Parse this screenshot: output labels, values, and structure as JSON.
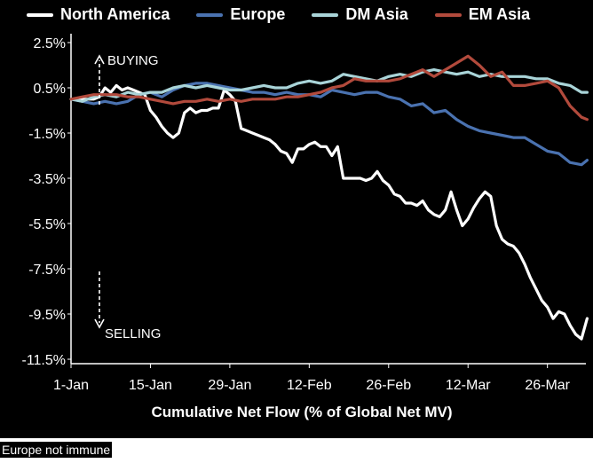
{
  "chart_data": {
    "type": "line",
    "title": "",
    "xlabel": "Cumulative Net Flow (% of Global Net MV)",
    "ylabel": "",
    "x_ticks": [
      "1-Jan",
      "15-Jan",
      "29-Jan",
      "12-Feb",
      "26-Feb",
      "12-Mar",
      "26-Mar"
    ],
    "y_ticks": [
      "2.5%",
      "0.5%",
      "-1.5%",
      "-3.5%",
      "-5.5%",
      "-7.5%",
      "-9.5%",
      "-11.5%"
    ],
    "ylim": [
      -11.5,
      2.5
    ],
    "xlim_days": [
      0,
      90
    ],
    "grid": false,
    "legend_position": "top",
    "annotations": [
      "BUYING",
      "SELLING"
    ],
    "series": [
      {
        "name": "North America",
        "color": "#ffffff",
        "points": [
          [
            0,
            0
          ],
          [
            2,
            0
          ],
          [
            4,
            0
          ],
          [
            5,
            0.1
          ],
          [
            6,
            0.5
          ],
          [
            7,
            0.3
          ],
          [
            8,
            0.6
          ],
          [
            9,
            0.4
          ],
          [
            10,
            0.5
          ],
          [
            11,
            0.4
          ],
          [
            12,
            0.3
          ],
          [
            13,
            0.2
          ],
          [
            14,
            -0.5
          ],
          [
            15,
            -0.8
          ],
          [
            16,
            -1.2
          ],
          [
            17,
            -1.5
          ],
          [
            18,
            -1.7
          ],
          [
            19,
            -1.5
          ],
          [
            20,
            -0.6
          ],
          [
            21,
            -0.4
          ],
          [
            22,
            -0.6
          ],
          [
            23,
            -0.5
          ],
          [
            24,
            -0.5
          ],
          [
            25,
            -0.4
          ],
          [
            26,
            -0.4
          ],
          [
            27,
            0.4
          ],
          [
            28,
            0.2
          ],
          [
            29,
            -0.1
          ],
          [
            30,
            -1.3
          ],
          [
            31,
            -1.4
          ],
          [
            32,
            -1.5
          ],
          [
            33,
            -1.6
          ],
          [
            34,
            -1.7
          ],
          [
            35,
            -1.8
          ],
          [
            36,
            -2.0
          ],
          [
            37,
            -2.3
          ],
          [
            38,
            -2.4
          ],
          [
            39,
            -2.8
          ],
          [
            40,
            -2.2
          ],
          [
            41,
            -2.2
          ],
          [
            42,
            -2.0
          ],
          [
            43,
            -1.9
          ],
          [
            44,
            -2.1
          ],
          [
            45,
            -2.1
          ],
          [
            46,
            -2.5
          ],
          [
            47,
            -2.1
          ],
          [
            48,
            -3.5
          ],
          [
            49,
            -3.5
          ],
          [
            50,
            -3.5
          ],
          [
            51,
            -3.5
          ],
          [
            52,
            -3.6
          ],
          [
            53,
            -3.5
          ],
          [
            54,
            -3.2
          ],
          [
            55,
            -3.6
          ],
          [
            56,
            -3.8
          ],
          [
            57,
            -4.2
          ],
          [
            58,
            -4.3
          ],
          [
            59,
            -4.6
          ],
          [
            60,
            -4.6
          ],
          [
            61,
            -4.7
          ],
          [
            62,
            -4.5
          ],
          [
            63,
            -4.9
          ],
          [
            64,
            -5.1
          ],
          [
            65,
            -5.2
          ],
          [
            66,
            -4.9
          ],
          [
            67,
            -4.1
          ],
          [
            68,
            -4.9
          ],
          [
            69,
            -5.6
          ],
          [
            70,
            -5.3
          ],
          [
            71,
            -4.8
          ],
          [
            72,
            -4.4
          ],
          [
            73,
            -4.1
          ],
          [
            74,
            -4.3
          ],
          [
            75,
            -5.6
          ],
          [
            76,
            -6.2
          ],
          [
            77,
            -6.4
          ],
          [
            78,
            -6.5
          ],
          [
            79,
            -6.8
          ],
          [
            80,
            -7.3
          ],
          [
            81,
            -7.9
          ],
          [
            82,
            -8.4
          ],
          [
            83,
            -8.9
          ],
          [
            84,
            -9.2
          ],
          [
            85,
            -9.7
          ],
          [
            86,
            -9.4
          ],
          [
            87,
            -9.5
          ],
          [
            88,
            -10.0
          ],
          [
            89,
            -10.4
          ],
          [
            90,
            -10.6
          ],
          [
            91,
            -9.7
          ]
        ]
      },
      {
        "name": "Europe",
        "color": "#4a72b0",
        "points": [
          [
            0,
            0
          ],
          [
            2,
            -0.1
          ],
          [
            4,
            -0.2
          ],
          [
            6,
            -0.1
          ],
          [
            8,
            -0.2
          ],
          [
            10,
            -0.1
          ],
          [
            12,
            0.2
          ],
          [
            14,
            0.3
          ],
          [
            16,
            0.1
          ],
          [
            18,
            0.4
          ],
          [
            20,
            0.6
          ],
          [
            22,
            0.7
          ],
          [
            24,
            0.7
          ],
          [
            26,
            0.6
          ],
          [
            28,
            0.5
          ],
          [
            30,
            0.4
          ],
          [
            32,
            0.3
          ],
          [
            34,
            0.3
          ],
          [
            36,
            0.2
          ],
          [
            38,
            0.3
          ],
          [
            40,
            0.2
          ],
          [
            42,
            0.2
          ],
          [
            44,
            0.1
          ],
          [
            46,
            0.4
          ],
          [
            48,
            0.3
          ],
          [
            50,
            0.2
          ],
          [
            52,
            0.3
          ],
          [
            54,
            0.3
          ],
          [
            56,
            0.1
          ],
          [
            58,
            0.0
          ],
          [
            60,
            -0.3
          ],
          [
            62,
            -0.2
          ],
          [
            64,
            -0.6
          ],
          [
            66,
            -0.5
          ],
          [
            68,
            -0.9
          ],
          [
            70,
            -1.2
          ],
          [
            72,
            -1.4
          ],
          [
            74,
            -1.5
          ],
          [
            76,
            -1.6
          ],
          [
            78,
            -1.7
          ],
          [
            80,
            -1.7
          ],
          [
            82,
            -2.0
          ],
          [
            84,
            -2.3
          ],
          [
            86,
            -2.4
          ],
          [
            88,
            -2.8
          ],
          [
            90,
            -2.9
          ],
          [
            91,
            -2.7
          ]
        ]
      },
      {
        "name": "DM Asia",
        "color": "#a9d4d8",
        "points": [
          [
            0,
            0
          ],
          [
            2,
            -0.1
          ],
          [
            4,
            0.1
          ],
          [
            6,
            0.2
          ],
          [
            8,
            0.1
          ],
          [
            10,
            0.3
          ],
          [
            12,
            0.2
          ],
          [
            14,
            0.3
          ],
          [
            16,
            0.3
          ],
          [
            18,
            0.5
          ],
          [
            20,
            0.6
          ],
          [
            22,
            0.5
          ],
          [
            24,
            0.6
          ],
          [
            26,
            0.5
          ],
          [
            28,
            0.4
          ],
          [
            30,
            0.4
          ],
          [
            32,
            0.5
          ],
          [
            34,
            0.6
          ],
          [
            36,
            0.5
          ],
          [
            38,
            0.5
          ],
          [
            40,
            0.7
          ],
          [
            42,
            0.8
          ],
          [
            44,
            0.7
          ],
          [
            46,
            0.8
          ],
          [
            48,
            1.1
          ],
          [
            50,
            1.0
          ],
          [
            52,
            0.9
          ],
          [
            54,
            0.8
          ],
          [
            56,
            1.0
          ],
          [
            58,
            1.1
          ],
          [
            60,
            1.0
          ],
          [
            62,
            1.2
          ],
          [
            64,
            1.3
          ],
          [
            66,
            1.2
          ],
          [
            68,
            1.1
          ],
          [
            70,
            1.2
          ],
          [
            72,
            1.0
          ],
          [
            74,
            1.1
          ],
          [
            76,
            1.0
          ],
          [
            78,
            1.0
          ],
          [
            80,
            1.0
          ],
          [
            82,
            0.9
          ],
          [
            84,
            0.9
          ],
          [
            86,
            0.7
          ],
          [
            88,
            0.6
          ],
          [
            90,
            0.3
          ],
          [
            91,
            0.3
          ]
        ]
      },
      {
        "name": "EM Asia",
        "color": "#b24a3c",
        "points": [
          [
            0,
            0
          ],
          [
            2,
            0.1
          ],
          [
            4,
            0.2
          ],
          [
            6,
            0.2
          ],
          [
            8,
            0.2
          ],
          [
            10,
            0.1
          ],
          [
            12,
            0.1
          ],
          [
            14,
            0.0
          ],
          [
            16,
            -0.1
          ],
          [
            18,
            -0.2
          ],
          [
            20,
            -0.1
          ],
          [
            22,
            -0.1
          ],
          [
            24,
            0.0
          ],
          [
            26,
            -0.1
          ],
          [
            28,
            0.0
          ],
          [
            30,
            -0.1
          ],
          [
            32,
            0.0
          ],
          [
            34,
            0.0
          ],
          [
            36,
            0.0
          ],
          [
            38,
            0.1
          ],
          [
            40,
            0.1
          ],
          [
            42,
            0.2
          ],
          [
            44,
            0.3
          ],
          [
            46,
            0.5
          ],
          [
            48,
            0.6
          ],
          [
            50,
            0.9
          ],
          [
            52,
            0.8
          ],
          [
            54,
            0.8
          ],
          [
            56,
            0.8
          ],
          [
            58,
            0.9
          ],
          [
            60,
            1.1
          ],
          [
            62,
            1.3
          ],
          [
            64,
            1.0
          ],
          [
            66,
            1.3
          ],
          [
            68,
            1.6
          ],
          [
            70,
            1.9
          ],
          [
            72,
            1.5
          ],
          [
            74,
            1.0
          ],
          [
            76,
            1.2
          ],
          [
            78,
            0.6
          ],
          [
            80,
            0.6
          ],
          [
            82,
            0.7
          ],
          [
            84,
            0.8
          ],
          [
            86,
            0.5
          ],
          [
            88,
            -0.3
          ],
          [
            90,
            -0.8
          ],
          [
            91,
            -0.9
          ]
        ]
      }
    ]
  },
  "caption": "Europe not immune"
}
